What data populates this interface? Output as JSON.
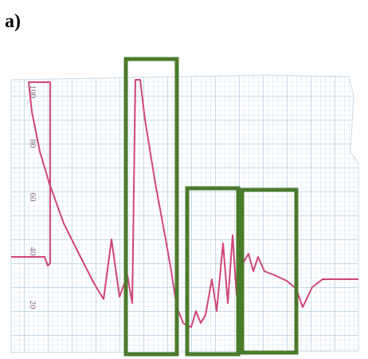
{
  "figure": {
    "label": "a)",
    "scale_labels": [
      "100",
      "80",
      "60",
      "40",
      "20"
    ]
  }
}
